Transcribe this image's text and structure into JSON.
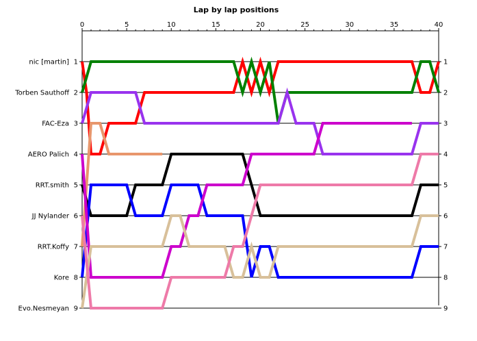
{
  "chart_data": {
    "type": "line",
    "title": "Lap by lap positions",
    "xlabel": "",
    "ylabel": "",
    "xlim": [
      0,
      40
    ],
    "x_ticks": [
      0,
      5,
      10,
      15,
      20,
      25,
      30,
      35,
      40
    ],
    "positions": [
      1,
      2,
      3,
      4,
      5,
      6,
      7,
      8,
      9
    ],
    "grid": "horizontal",
    "legend": "none",
    "drivers_by_start": [
      "nic [martin]",
      "Torben Sauthoff",
      "FAC-Eza",
      "AERO  Palich",
      "RRT.smith",
      "JJ Nylander",
      "RRT.Koffy",
      "Kore",
      "Evo.Nesmeyan"
    ],
    "series": [
      {
        "color": "#ff0000",
        "points": [
          [
            0,
            1
          ],
          [
            0.5,
            2
          ],
          [
            1,
            4
          ],
          [
            2,
            4
          ],
          [
            3,
            3
          ],
          [
            6,
            3
          ],
          [
            7,
            2
          ],
          [
            17,
            2
          ],
          [
            18,
            1
          ],
          [
            19,
            2
          ],
          [
            20,
            1
          ],
          [
            21,
            2
          ],
          [
            22,
            1
          ],
          [
            37,
            1
          ],
          [
            38,
            2
          ],
          [
            39,
            2
          ],
          [
            40,
            1
          ]
        ]
      },
      {
        "color": "#008000",
        "points": [
          [
            0,
            2
          ],
          [
            1,
            1
          ],
          [
            17,
            1
          ],
          [
            18,
            2
          ],
          [
            19,
            1
          ],
          [
            20,
            2
          ],
          [
            21,
            1
          ],
          [
            22,
            3
          ],
          [
            23,
            2
          ],
          [
            37,
            2
          ],
          [
            38,
            1
          ],
          [
            39,
            1
          ],
          [
            40,
            2
          ]
        ]
      },
      {
        "color": "#9933ee",
        "points": [
          [
            0,
            3
          ],
          [
            1,
            2
          ],
          [
            6,
            2
          ],
          [
            7,
            3
          ],
          [
            22,
            3
          ],
          [
            23,
            2
          ],
          [
            24,
            3
          ],
          [
            26,
            3
          ],
          [
            27,
            4
          ],
          [
            37,
            4
          ],
          [
            38,
            3
          ],
          [
            40,
            3
          ]
        ]
      },
      {
        "color": "#e8966c",
        "points": [
          [
            0,
            7
          ],
          [
            1,
            3
          ],
          [
            2,
            3
          ],
          [
            3,
            4
          ],
          [
            9,
            4
          ]
        ]
      },
      {
        "color": "#000000",
        "points": [
          [
            0,
            5
          ],
          [
            1,
            6
          ],
          [
            5,
            6
          ],
          [
            6,
            5
          ],
          [
            9,
            5
          ],
          [
            10,
            4
          ],
          [
            18,
            4
          ],
          [
            19,
            5
          ],
          [
            20,
            6
          ],
          [
            37,
            6
          ],
          [
            38,
            5
          ],
          [
            40,
            5
          ]
        ]
      },
      {
        "color": "#0000ff",
        "points": [
          [
            0,
            8
          ],
          [
            1,
            5
          ],
          [
            5,
            5
          ],
          [
            6,
            6
          ],
          [
            9,
            6
          ],
          [
            10,
            5
          ],
          [
            13,
            5
          ],
          [
            14,
            6
          ],
          [
            18,
            6
          ],
          [
            19,
            8
          ],
          [
            20,
            7
          ],
          [
            21,
            7
          ],
          [
            22,
            8
          ],
          [
            37,
            8
          ],
          [
            38,
            7
          ],
          [
            40,
            7
          ]
        ]
      },
      {
        "color": "#cc00cc",
        "points": [
          [
            0,
            4
          ],
          [
            1,
            8
          ],
          [
            9,
            8
          ],
          [
            10,
            7
          ],
          [
            11,
            7
          ],
          [
            12,
            6
          ],
          [
            13,
            6
          ],
          [
            14,
            5
          ],
          [
            18,
            5
          ],
          [
            19,
            4
          ],
          [
            26,
            4
          ],
          [
            27,
            3
          ],
          [
            37,
            3
          ]
        ]
      },
      {
        "color": "#d8c09a",
        "points": [
          [
            0,
            9
          ],
          [
            1,
            7
          ],
          [
            9,
            7
          ],
          [
            10,
            6
          ],
          [
            11,
            6
          ],
          [
            12,
            7
          ],
          [
            16,
            7
          ],
          [
            17,
            8
          ],
          [
            18,
            8
          ],
          [
            19,
            7
          ],
          [
            20,
            8
          ],
          [
            21,
            8
          ],
          [
            22,
            7
          ],
          [
            37,
            7
          ],
          [
            38,
            6
          ],
          [
            40,
            6
          ]
        ]
      },
      {
        "color": "#ee7aa8",
        "points": [
          [
            0,
            6
          ],
          [
            1,
            9
          ],
          [
            9,
            9
          ],
          [
            10,
            8
          ],
          [
            16,
            8
          ],
          [
            17,
            7
          ],
          [
            18,
            7
          ],
          [
            19,
            6
          ],
          [
            20,
            5
          ],
          [
            37,
            5
          ],
          [
            38,
            4
          ],
          [
            40,
            4
          ]
        ]
      }
    ]
  }
}
